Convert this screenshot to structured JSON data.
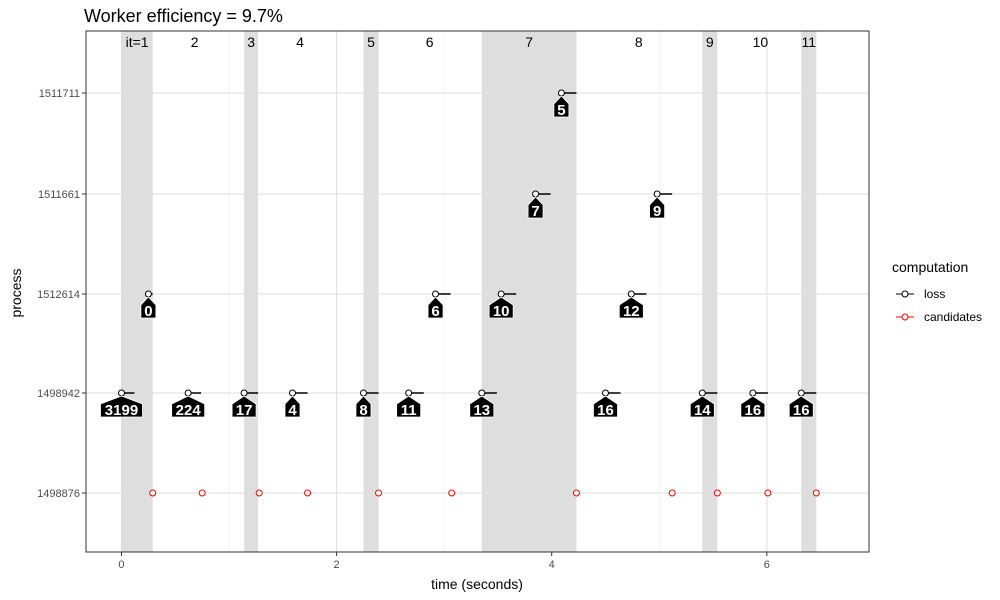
{
  "chart_data": {
    "type": "scatter",
    "title": "Worker efficiency = 9.7%",
    "xlabel": "time (seconds)",
    "ylabel": "process",
    "xlim": [
      -0.33,
      6.95
    ],
    "x_ticks": [
      0,
      2,
      4,
      6
    ],
    "y_categories": [
      "1498876",
      "1498942",
      "1512614",
      "1511661",
      "1511711"
    ],
    "grid": true,
    "legend": {
      "title": "computation",
      "placement": "right",
      "entries": [
        {
          "label": "loss",
          "color": "#000000"
        },
        {
          "label": "candidates",
          "color": "#ff0000"
        }
      ]
    },
    "iterations": [
      {
        "label": "it=1",
        "start": 0.0,
        "end": 0.29
      },
      {
        "label": "2",
        "start": 0.62,
        "end": 0.74
      },
      {
        "label": "3",
        "start": 1.14,
        "end": 1.27
      },
      {
        "label": "4",
        "start": 1.59,
        "end": 1.73
      },
      {
        "label": "5",
        "start": 2.25,
        "end": 2.39
      },
      {
        "label": "6",
        "start": 2.67,
        "end": 3.06
      },
      {
        "label": "7",
        "start": 3.35,
        "end": 4.23
      },
      {
        "label": "8",
        "start": 4.5,
        "end": 5.12
      },
      {
        "label": "9",
        "start": 5.4,
        "end": 5.54
      },
      {
        "label": "10",
        "start": 5.87,
        "end": 6.01
      },
      {
        "label": "11",
        "start": 6.32,
        "end": 6.46
      }
    ],
    "series": [
      {
        "name": "loss",
        "color": "#000000",
        "points": [
          {
            "start": 0.0,
            "end": 0.12,
            "process": "1498942",
            "label": "3199"
          },
          {
            "start": 0.25,
            "end": 0.29,
            "process": "1512614",
            "label": "0"
          },
          {
            "start": 0.62,
            "end": 0.74,
            "process": "1498942",
            "label": "224"
          },
          {
            "start": 1.14,
            "end": 1.27,
            "process": "1498942",
            "label": "17"
          },
          {
            "start": 1.59,
            "end": 1.73,
            "process": "1498942",
            "label": "4"
          },
          {
            "start": 2.25,
            "end": 2.39,
            "process": "1498942",
            "label": "8"
          },
          {
            "start": 2.67,
            "end": 2.81,
            "process": "1498942",
            "label": "11"
          },
          {
            "start": 2.92,
            "end": 3.06,
            "process": "1512614",
            "label": "6"
          },
          {
            "start": 3.35,
            "end": 3.49,
            "process": "1498942",
            "label": "13"
          },
          {
            "start": 3.53,
            "end": 3.67,
            "process": "1512614",
            "label": "10"
          },
          {
            "start": 3.85,
            "end": 3.99,
            "process": "1511661",
            "label": "7"
          },
          {
            "start": 4.09,
            "end": 4.23,
            "process": "1511711",
            "label": "5"
          },
          {
            "start": 4.5,
            "end": 4.64,
            "process": "1498942",
            "label": "16"
          },
          {
            "start": 4.74,
            "end": 4.88,
            "process": "1512614",
            "label": "12"
          },
          {
            "start": 4.98,
            "end": 5.12,
            "process": "1511661",
            "label": "9"
          },
          {
            "start": 5.4,
            "end": 5.54,
            "process": "1498942",
            "label": "14"
          },
          {
            "start": 5.87,
            "end": 6.01,
            "process": "1498942",
            "label": "16"
          },
          {
            "start": 6.32,
            "end": 6.46,
            "process": "1498942",
            "label": "16"
          }
        ]
      },
      {
        "name": "candidates",
        "color": "#ff0000",
        "points": [
          {
            "x": 0.29,
            "process": "1498876"
          },
          {
            "x": 0.75,
            "process": "1498876"
          },
          {
            "x": 1.28,
            "process": "1498876"
          },
          {
            "x": 1.73,
            "process": "1498876"
          },
          {
            "x": 2.39,
            "process": "1498876"
          },
          {
            "x": 3.07,
            "process": "1498876"
          },
          {
            "x": 4.23,
            "process": "1498876"
          },
          {
            "x": 5.12,
            "process": "1498876"
          },
          {
            "x": 5.54,
            "process": "1498876"
          },
          {
            "x": 6.01,
            "process": "1498876"
          },
          {
            "x": 6.46,
            "process": "1498876"
          }
        ]
      }
    ]
  }
}
